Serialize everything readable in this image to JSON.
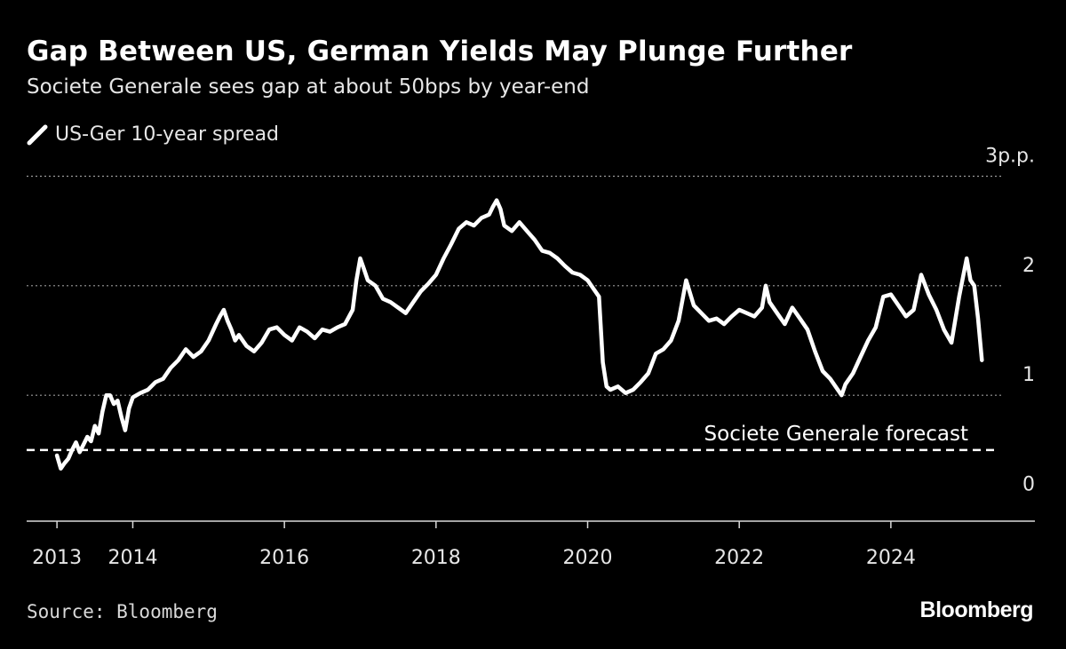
{
  "header": {
    "title": "Gap Between US, German Yields May Plunge Further",
    "subtitle": "Societe Generale sees gap at about 50bps by year-end"
  },
  "footer": {
    "source": "Source: Bloomberg",
    "brand": "Bloomberg"
  },
  "colors": {
    "background": "#000000",
    "line": "#ffffff",
    "grid": "#9a9a9a"
  },
  "chart_data": {
    "type": "line",
    "title": "Gap Between US, German Yields May Plunge Further",
    "subtitle": "Societe Generale sees gap at about 50bps by year-end",
    "legend": {
      "position": "top-left",
      "entries": [
        "US-Ger 10-year spread"
      ]
    },
    "grid": true,
    "x_ticks": [
      {
        "value": 2013.0,
        "label": "2013"
      },
      {
        "value": 2014.0,
        "label": "2014"
      },
      {
        "value": 2016.0,
        "label": "2016"
      },
      {
        "value": 2018.0,
        "label": "2018"
      },
      {
        "value": 2020.0,
        "label": "2020"
      },
      {
        "value": 2022.0,
        "label": "2022"
      },
      {
        "value": 2024.0,
        "label": "2024"
      }
    ],
    "y_ticks": [
      {
        "value": 0,
        "label": "0"
      },
      {
        "value": 1,
        "label": "1"
      },
      {
        "value": 2,
        "label": "2"
      },
      {
        "value": 3,
        "label": "3p.p."
      }
    ],
    "xlim": [
      2012.6,
      2025.9
    ],
    "ylim": [
      -0.15,
      3.15
    ],
    "series": [
      {
        "name": "US-Ger 10-year spread",
        "x": [
          2013.0,
          2013.05,
          2013.1,
          2013.15,
          2013.2,
          2013.25,
          2013.3,
          2013.35,
          2013.4,
          2013.45,
          2013.5,
          2013.55,
          2013.6,
          2013.65,
          2013.7,
          2013.75,
          2013.8,
          2013.85,
          2013.9,
          2013.95,
          2014.0,
          2014.1,
          2014.2,
          2014.3,
          2014.4,
          2014.5,
          2014.6,
          2014.7,
          2014.8,
          2014.9,
          2015.0,
          2015.1,
          2015.15,
          2015.2,
          2015.25,
          2015.3,
          2015.35,
          2015.4,
          2015.5,
          2015.6,
          2015.7,
          2015.8,
          2015.9,
          2016.0,
          2016.1,
          2016.2,
          2016.3,
          2016.4,
          2016.5,
          2016.6,
          2016.7,
          2016.8,
          2016.9,
          2016.95,
          2017.0,
          2017.05,
          2017.1,
          2017.2,
          2017.3,
          2017.4,
          2017.5,
          2017.6,
          2017.7,
          2017.8,
          2017.9,
          2018.0,
          2018.1,
          2018.2,
          2018.3,
          2018.4,
          2018.5,
          2018.6,
          2018.7,
          2018.75,
          2018.8,
          2018.85,
          2018.9,
          2019.0,
          2019.1,
          2019.2,
          2019.3,
          2019.4,
          2019.5,
          2019.6,
          2019.7,
          2019.8,
          2019.9,
          2020.0,
          2020.1,
          2020.15,
          2020.2,
          2020.25,
          2020.3,
          2020.4,
          2020.5,
          2020.6,
          2020.7,
          2020.8,
          2020.9,
          2021.0,
          2021.1,
          2021.2,
          2021.3,
          2021.4,
          2021.5,
          2021.6,
          2021.7,
          2021.8,
          2021.9,
          2022.0,
          2022.1,
          2022.2,
          2022.3,
          2022.35,
          2022.4,
          2022.5,
          2022.6,
          2022.7,
          2022.8,
          2022.9,
          2023.0,
          2023.1,
          2023.2,
          2023.3,
          2023.35,
          2023.4,
          2023.5,
          2023.6,
          2023.7,
          2023.8,
          2023.9,
          2024.0,
          2024.1,
          2024.2,
          2024.3,
          2024.4,
          2024.5,
          2024.6,
          2024.7,
          2024.8,
          2024.9,
          2025.0,
          2025.05,
          2025.1,
          2025.15,
          2025.2
        ],
        "y": [
          0.45,
          0.33,
          0.38,
          0.42,
          0.5,
          0.57,
          0.48,
          0.55,
          0.62,
          0.58,
          0.72,
          0.65,
          0.85,
          1.0,
          1.0,
          0.92,
          0.95,
          0.8,
          0.68,
          0.88,
          0.98,
          1.02,
          1.05,
          1.12,
          1.15,
          1.25,
          1.32,
          1.42,
          1.35,
          1.4,
          1.5,
          1.65,
          1.72,
          1.78,
          1.68,
          1.6,
          1.5,
          1.55,
          1.45,
          1.4,
          1.48,
          1.6,
          1.62,
          1.55,
          1.5,
          1.62,
          1.58,
          1.52,
          1.6,
          1.58,
          1.62,
          1.65,
          1.78,
          2.05,
          2.25,
          2.15,
          2.05,
          2.0,
          1.88,
          1.85,
          1.8,
          1.75,
          1.85,
          1.95,
          2.02,
          2.1,
          2.25,
          2.38,
          2.52,
          2.58,
          2.55,
          2.62,
          2.65,
          2.72,
          2.78,
          2.7,
          2.55,
          2.5,
          2.58,
          2.5,
          2.42,
          2.32,
          2.3,
          2.25,
          2.18,
          2.12,
          2.1,
          2.05,
          1.95,
          1.9,
          1.3,
          1.08,
          1.05,
          1.08,
          1.02,
          1.05,
          1.12,
          1.2,
          1.38,
          1.42,
          1.5,
          1.68,
          2.05,
          1.82,
          1.75,
          1.68,
          1.7,
          1.65,
          1.72,
          1.78,
          1.75,
          1.72,
          1.8,
          2.0,
          1.85,
          1.75,
          1.65,
          1.8,
          1.7,
          1.6,
          1.4,
          1.22,
          1.15,
          1.05,
          1.0,
          1.1,
          1.2,
          1.35,
          1.5,
          1.62,
          1.9,
          1.92,
          1.82,
          1.72,
          1.78,
          2.1,
          1.92,
          1.78,
          1.6,
          1.48,
          1.9,
          2.25,
          2.05,
          2.0,
          1.7,
          1.32
        ]
      }
    ],
    "reference_lines": [
      {
        "y": 0.5,
        "style": "dashed",
        "label": "Societe Generale forecast"
      }
    ]
  }
}
